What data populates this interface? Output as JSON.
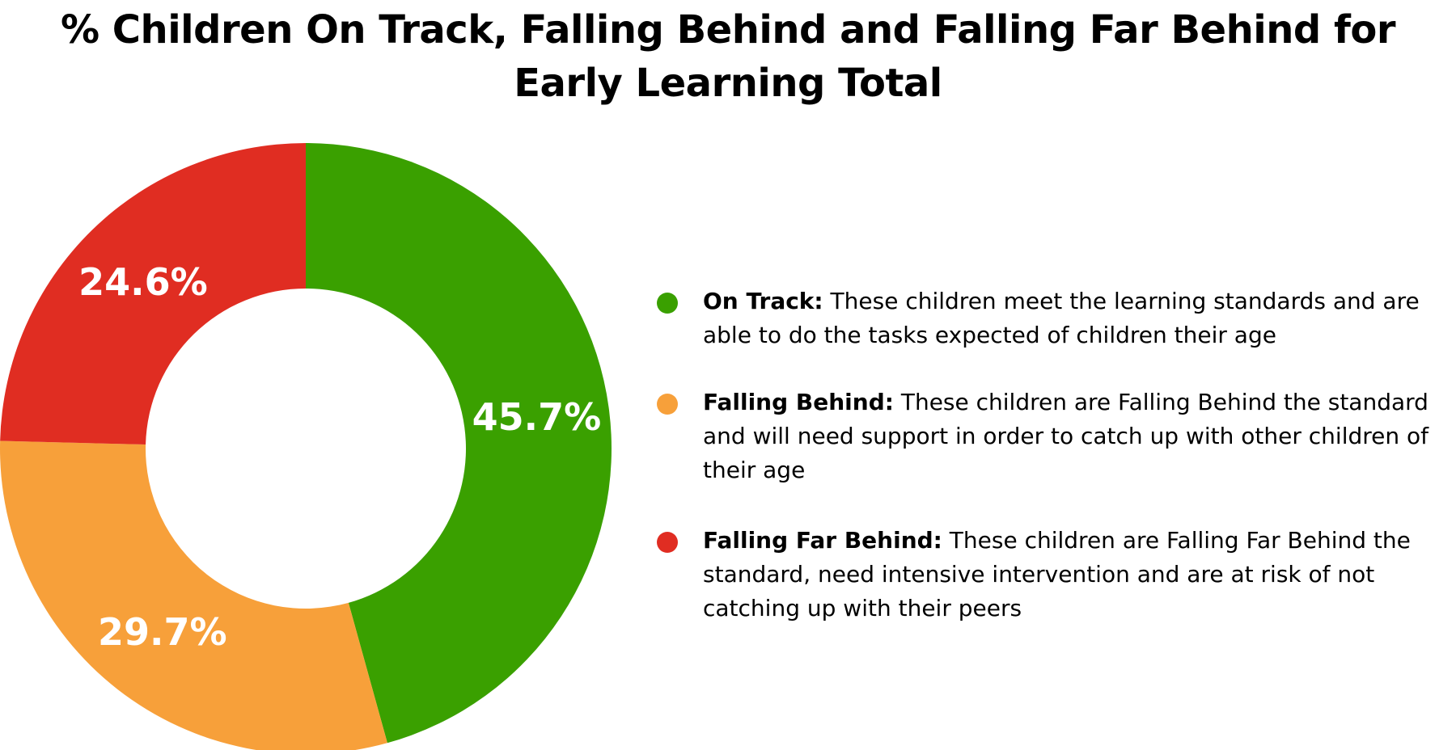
{
  "chart_data": {
    "type": "pie",
    "style": "donut",
    "title_lines": [
      "% Children On Track, Falling Behind and Falling Far Behind for",
      "Early Learning Total"
    ],
    "slices": [
      {
        "name": "On Track",
        "value": 45.7,
        "label": "45.7%",
        "color": "#3aa000"
      },
      {
        "name": "Falling Behind",
        "value": 29.7,
        "label": "29.7%",
        "color": "#f7a03a"
      },
      {
        "name": "Falling Far Behind",
        "value": 24.6,
        "label": "24.6%",
        "color": "#e02d22"
      }
    ],
    "legend_placement": "right",
    "legend": [
      {
        "name": "On Track:",
        "description": "These children meet the learning standards and are able to do the tasks expected of children their age",
        "color": "#3aa000"
      },
      {
        "name": "Falling Behind:",
        "description": "These children are Falling Behind the standard and will need support in order to catch up with other children of their age",
        "color": "#f7a03a"
      },
      {
        "name": "Falling Far Behind:",
        "description": "These children are Falling Far Behind the standard, need intensive intervention and are at risk of not catching up with their peers",
        "color": "#e02d22"
      }
    ]
  }
}
